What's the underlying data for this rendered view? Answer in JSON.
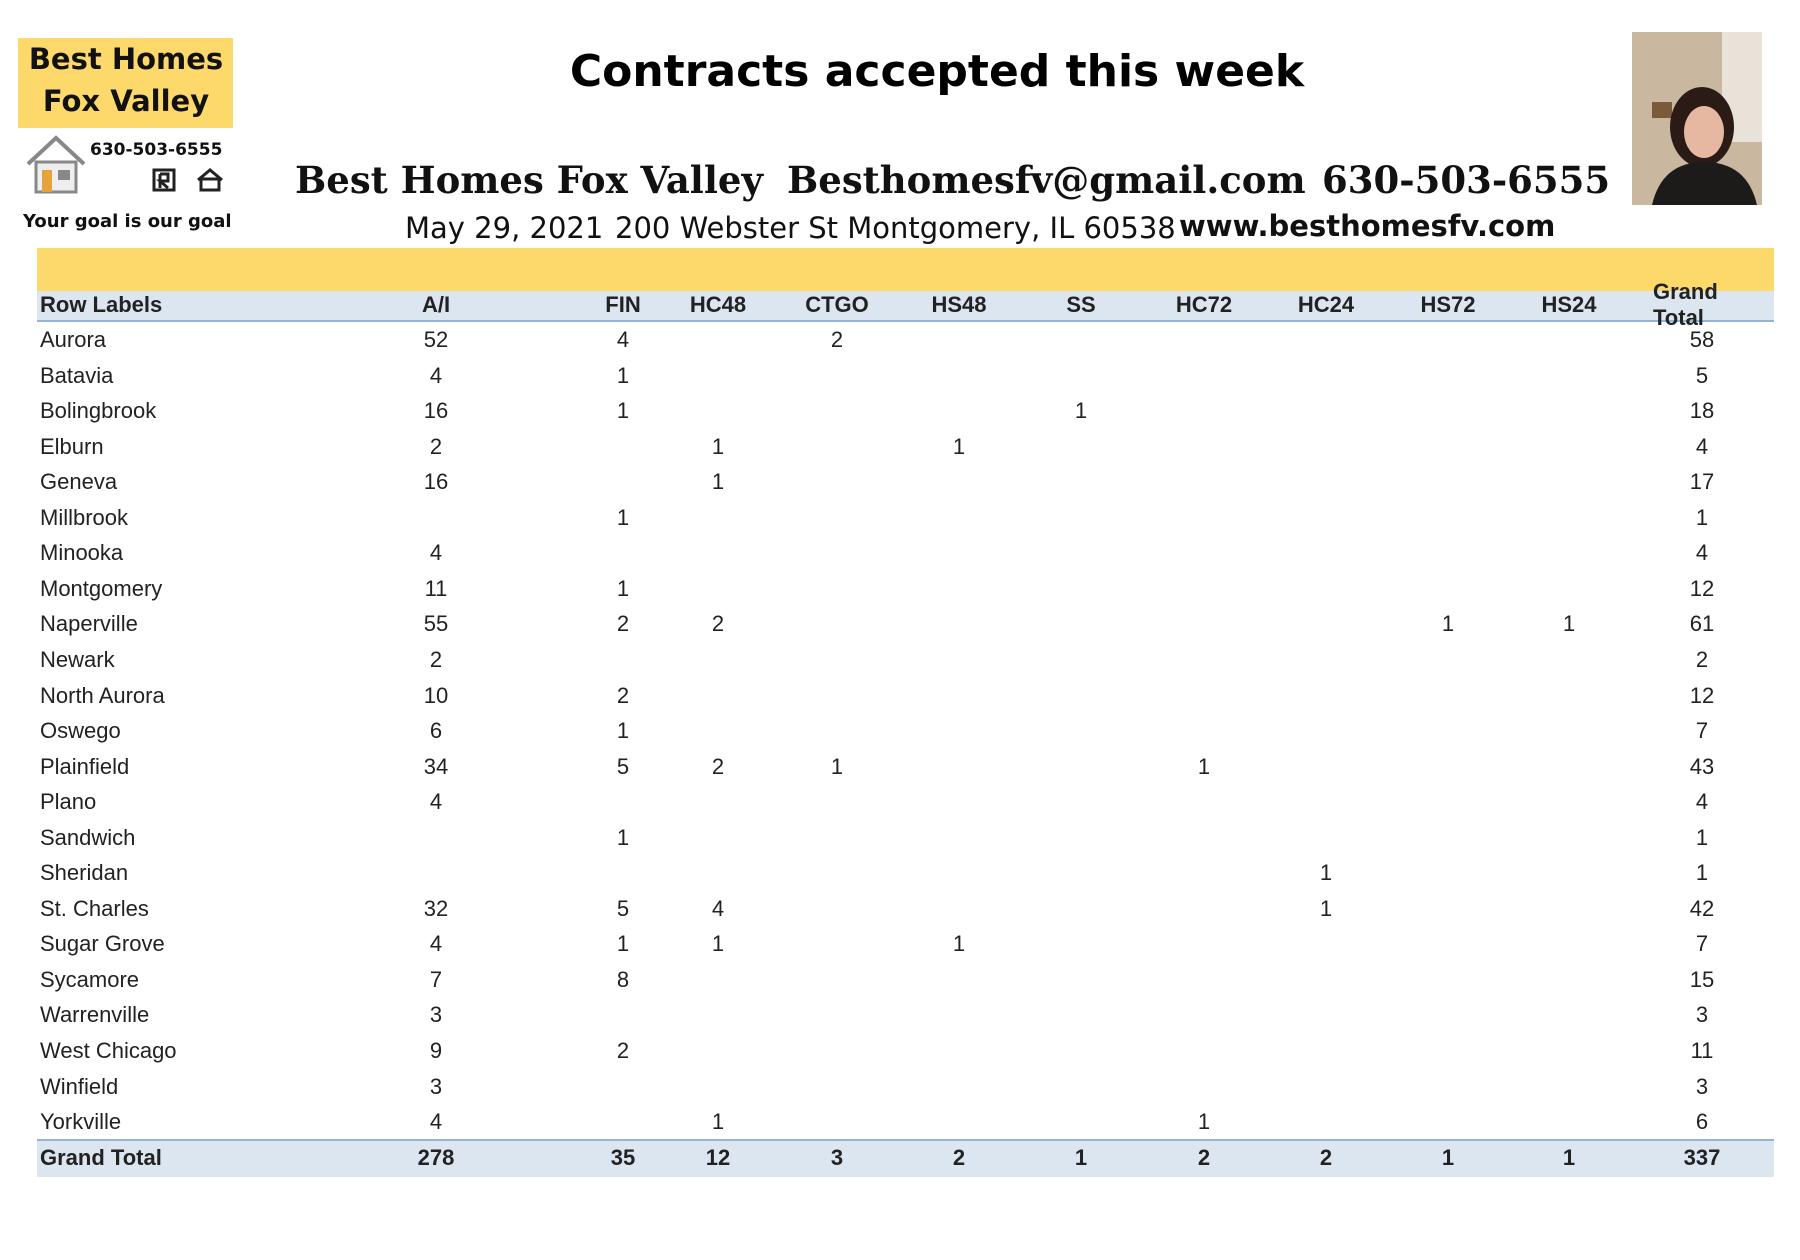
{
  "logo": {
    "line1": "Best Homes",
    "line2": "Fox Valley",
    "phone": "630-503-6555",
    "tagline": "Your goal is our goal"
  },
  "header": {
    "title": "Contracts accepted this week",
    "company": "Best Homes Fox Valley",
    "email": "Besthomesfv@gmail.com",
    "phone": "630-503-6555",
    "date": "May 29, 2021",
    "address": "200 Webster St Montgomery, IL 60538",
    "website": "www.besthomesfv.com"
  },
  "table": {
    "columns": [
      "Row Labels",
      "A/I",
      "FIN",
      "HC48",
      "CTGO",
      "HS48",
      "SS",
      "HC72",
      "HC24",
      "HS72",
      "HS24",
      "Grand Total"
    ],
    "rows": [
      [
        "Aurora",
        52,
        4,
        null,
        2,
        null,
        null,
        null,
        null,
        null,
        null,
        58
      ],
      [
        "Batavia",
        4,
        1,
        null,
        null,
        null,
        null,
        null,
        null,
        null,
        null,
        5
      ],
      [
        "Bolingbrook",
        16,
        1,
        null,
        null,
        null,
        1,
        null,
        null,
        null,
        null,
        18
      ],
      [
        "Elburn",
        2,
        null,
        1,
        null,
        1,
        null,
        null,
        null,
        null,
        null,
        4
      ],
      [
        "Geneva",
        16,
        null,
        1,
        null,
        null,
        null,
        null,
        null,
        null,
        null,
        17
      ],
      [
        "Millbrook",
        null,
        1,
        null,
        null,
        null,
        null,
        null,
        null,
        null,
        null,
        1
      ],
      [
        "Minooka",
        4,
        null,
        null,
        null,
        null,
        null,
        null,
        null,
        null,
        null,
        4
      ],
      [
        "Montgomery",
        11,
        1,
        null,
        null,
        null,
        null,
        null,
        null,
        null,
        null,
        12
      ],
      [
        "Naperville",
        55,
        2,
        2,
        null,
        null,
        null,
        null,
        null,
        1,
        1,
        61
      ],
      [
        "Newark",
        2,
        null,
        null,
        null,
        null,
        null,
        null,
        null,
        null,
        null,
        2
      ],
      [
        "North Aurora",
        10,
        2,
        null,
        null,
        null,
        null,
        null,
        null,
        null,
        null,
        12
      ],
      [
        "Oswego",
        6,
        1,
        null,
        null,
        null,
        null,
        null,
        null,
        null,
        null,
        7
      ],
      [
        "Plainfield",
        34,
        5,
        2,
        1,
        null,
        null,
        1,
        null,
        null,
        null,
        43
      ],
      [
        "Plano",
        4,
        null,
        null,
        null,
        null,
        null,
        null,
        null,
        null,
        null,
        4
      ],
      [
        "Sandwich",
        null,
        1,
        null,
        null,
        null,
        null,
        null,
        null,
        null,
        null,
        1
      ],
      [
        "Sheridan",
        null,
        null,
        null,
        null,
        null,
        null,
        null,
        1,
        null,
        null,
        1
      ],
      [
        "St. Charles",
        32,
        5,
        4,
        null,
        null,
        null,
        null,
        1,
        null,
        null,
        42
      ],
      [
        "Sugar Grove",
        4,
        1,
        1,
        null,
        1,
        null,
        null,
        null,
        null,
        null,
        7
      ],
      [
        "Sycamore",
        7,
        8,
        null,
        null,
        null,
        null,
        null,
        null,
        null,
        null,
        15
      ],
      [
        "Warrenville",
        3,
        null,
        null,
        null,
        null,
        null,
        null,
        null,
        null,
        null,
        3
      ],
      [
        "West Chicago",
        9,
        2,
        null,
        null,
        null,
        null,
        null,
        null,
        null,
        null,
        11
      ],
      [
        "Winfield",
        3,
        null,
        null,
        null,
        null,
        null,
        null,
        null,
        null,
        null,
        3
      ],
      [
        "Yorkville",
        4,
        null,
        1,
        null,
        null,
        null,
        1,
        null,
        null,
        null,
        6
      ]
    ],
    "total": [
      "Grand Total",
      278,
      35,
      12,
      3,
      2,
      1,
      2,
      2,
      1,
      1,
      337
    ]
  }
}
